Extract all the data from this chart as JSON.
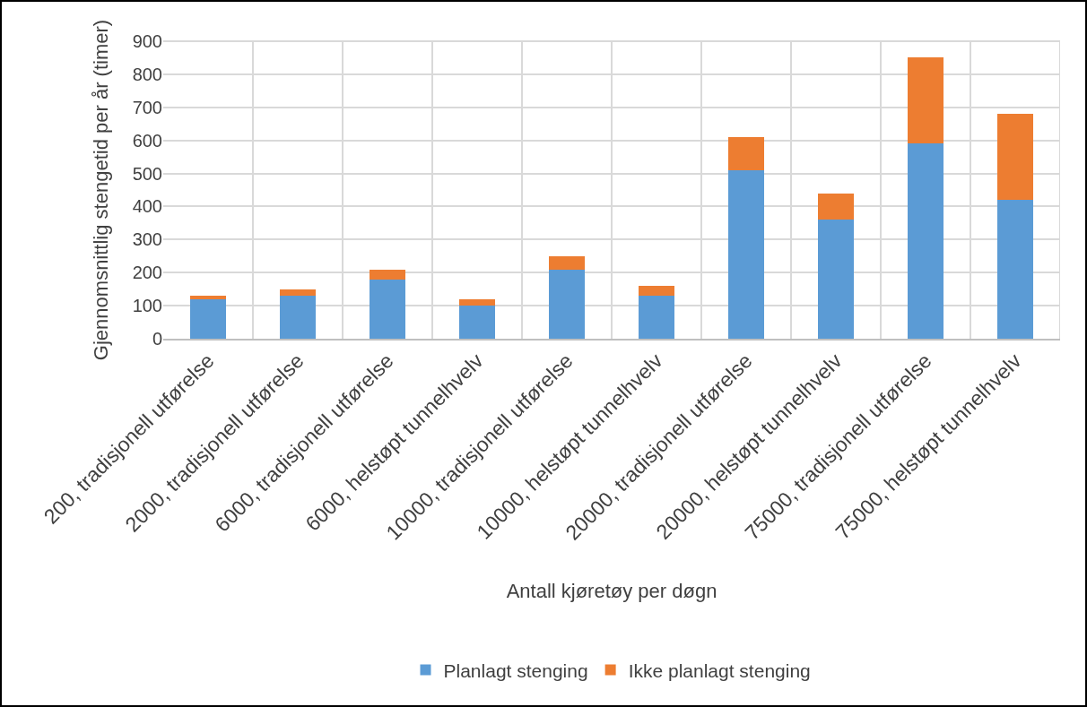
{
  "chart_data": {
    "type": "bar",
    "stacked": true,
    "xlabel": "Antall kjøretøy per døgn",
    "ylabel": "Gjennomsnittlig stengetid per år (timer)",
    "categories": [
      "200, tradisjonell utførelse",
      "2000, tradisjonell utførelse",
      "6000, tradisjonell utførelse",
      "6000, helstøpt tunnelhvelv",
      "10000, tradisjonell utførelse",
      "10000, helstøpt tunnelhvelv",
      "20000, tradisjonell utførelse",
      "20000, helstøpt tunnelhvelv",
      "75000, tradisjonell utførelse",
      "75000, helstøpt tunnelhvelv"
    ],
    "series": [
      {
        "name": "Planlagt stenging",
        "color": "#5b9bd5",
        "values": [
          120,
          130,
          180,
          100,
          210,
          130,
          510,
          360,
          590,
          420
        ]
      },
      {
        "name": "Ikke planlagt stenging",
        "color": "#ed7d31",
        "values": [
          10,
          20,
          30,
          20,
          40,
          30,
          100,
          80,
          260,
          260
        ]
      }
    ],
    "ylim": [
      0,
      900
    ],
    "yticks": [
      0,
      100,
      200,
      300,
      400,
      500,
      600,
      700,
      800,
      900
    ],
    "grid": true,
    "legend": "bottom"
  }
}
